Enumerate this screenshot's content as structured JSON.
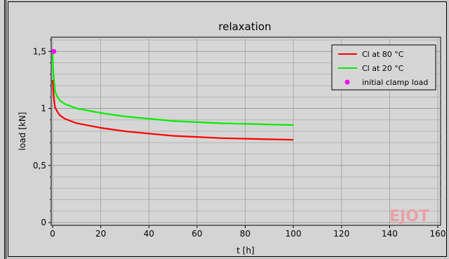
{
  "chart_data": {
    "type": "line",
    "title": "relaxation",
    "xlabel": "t [h]",
    "ylabel": "load [kN]",
    "xlim": [
      0,
      160
    ],
    "ylim": [
      0,
      1.6
    ],
    "x_ticks": [
      "0",
      "20",
      "40",
      "60",
      "80",
      "100",
      "120",
      "140",
      "160"
    ],
    "y_ticks": [
      "0",
      "0,5",
      "1",
      "1,5"
    ],
    "grid": true,
    "legend_position": "top-right",
    "series": [
      {
        "name": "Cl at 80 °C",
        "color": "#ff0000",
        "x": [
          0,
          0.3,
          0.7,
          1,
          2,
          3,
          5,
          10,
          20,
          30,
          40,
          50,
          60,
          70,
          80,
          90,
          100
        ],
        "y": [
          1.25,
          1.15,
          1.06,
          1.01,
          0.97,
          0.94,
          0.91,
          0.87,
          0.83,
          0.8,
          0.78,
          0.76,
          0.75,
          0.74,
          0.735,
          0.73,
          0.725
        ]
      },
      {
        "name": "Cl at 20 °C",
        "color": "#00ee00",
        "x": [
          0,
          0.3,
          0.7,
          1,
          2,
          3,
          5,
          10,
          20,
          30,
          40,
          50,
          60,
          70,
          80,
          90,
          100
        ],
        "y": [
          1.48,
          1.32,
          1.22,
          1.15,
          1.1,
          1.07,
          1.04,
          1.0,
          0.96,
          0.93,
          0.91,
          0.89,
          0.88,
          0.87,
          0.865,
          0.86,
          0.855
        ]
      },
      {
        "name": "initial clamp load",
        "color": "#ff00ff",
        "marker": "circle",
        "x": [
          0.5
        ],
        "y": [
          1.5
        ]
      }
    ],
    "watermark": "EJOT"
  }
}
